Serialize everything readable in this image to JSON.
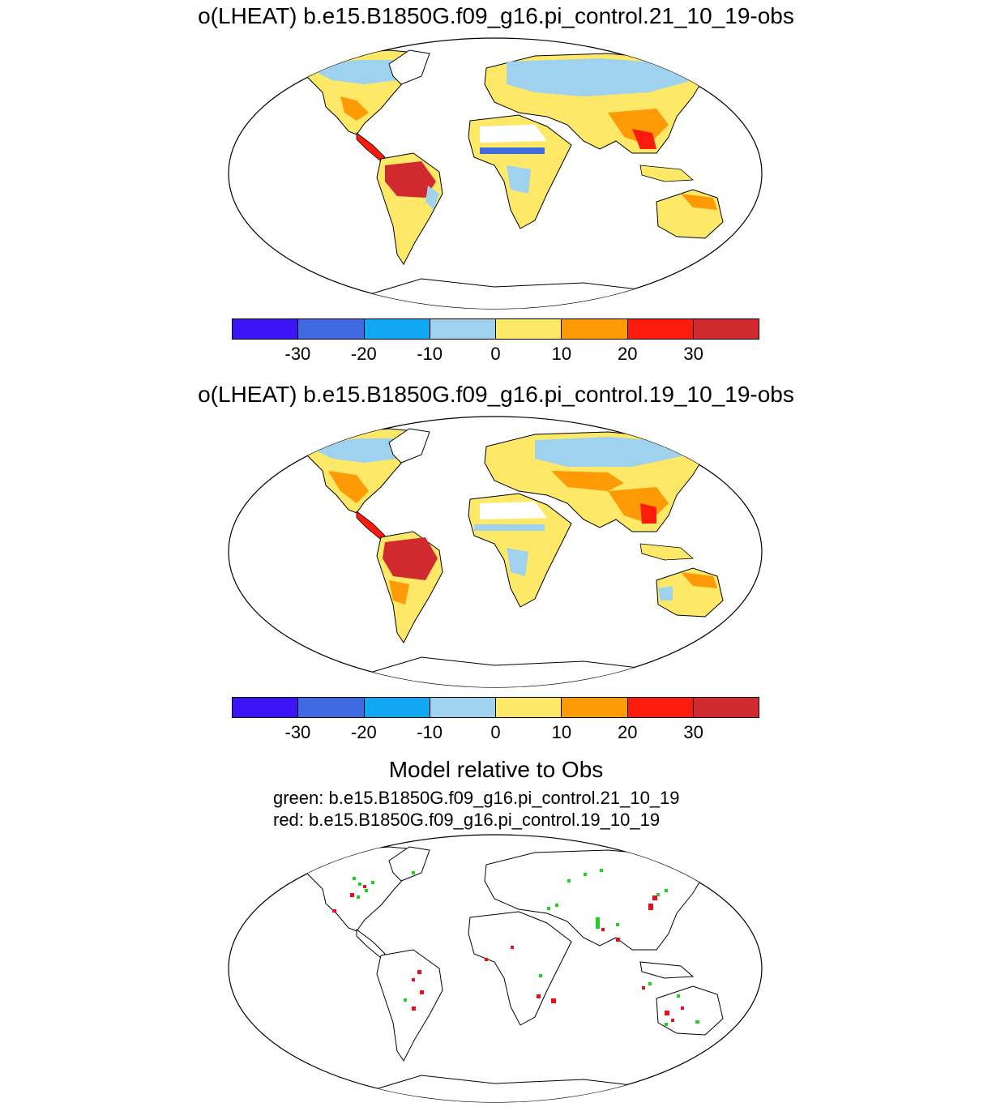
{
  "panels": [
    {
      "title": "o(LHEAT) b.e15.B1850G.f09_g16.pi_control.21_10_19-obs"
    },
    {
      "title": "o(LHEAT) b.e15.B1850G.f09_g16.pi_control.19_10_19-obs"
    }
  ],
  "colorbar": {
    "colors": [
      "#3d14f5",
      "#3f6ae0",
      "#12a7f2",
      "#9fd2ee",
      "#fde967",
      "#fd9a06",
      "#fc1b0c",
      "#d02a2e"
    ],
    "labels": [
      "-30",
      "-20",
      "-10",
      "0",
      "10",
      "20",
      "30"
    ]
  },
  "comparison": {
    "title": "Model relative to Obs",
    "green_line": "green: b.e15.B1850G.f09_g16.pi_control.21_10_19",
    "red_line": "red: b.e15.B1850G.f09_g16.pi_control.19_10_19",
    "green_color": "#1ed21e",
    "red_color": "#e4101e"
  },
  "map_colors": {
    "land_base": "#fde967",
    "coast": "#000000",
    "frame": "#000000"
  }
}
